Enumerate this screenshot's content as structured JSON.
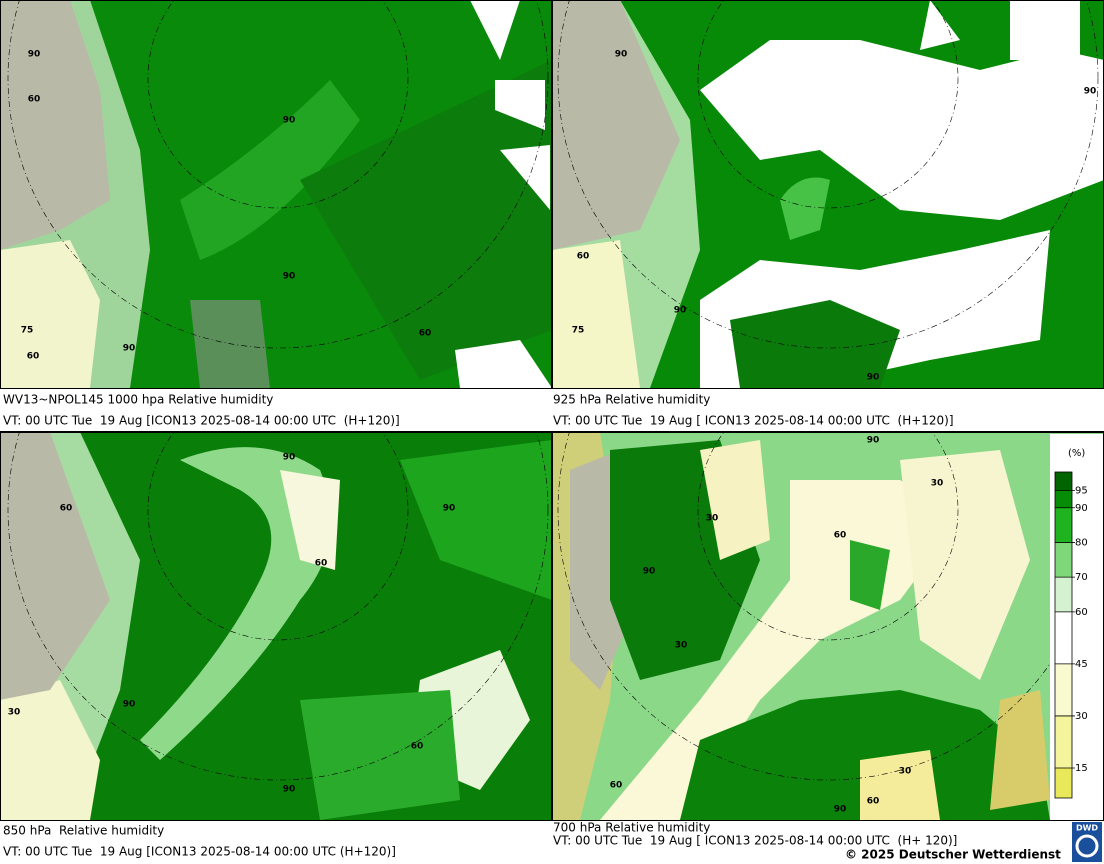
{
  "panels": [
    {
      "caption": "WV13~NPOL145 1000 hpa Relative humidity",
      "valid_time": "VT: 00 UTC Tue  19 Aug [ICON13 2025-08-14 00:00 UTC  (H+120)]",
      "contour_labels": [
        "90",
        "60",
        "90",
        "90",
        "90",
        "60",
        "60",
        "75"
      ]
    },
    {
      "caption": "925 hPa Relative humidity",
      "valid_time": "VT: 00 UTC Tue  19 Aug [ ICON13 2025-08-14 00:00 UTC  (H+120)]",
      "contour_labels": [
        "90",
        "60",
        "90",
        "90",
        "90",
        "75"
      ]
    },
    {
      "caption": "850 hPa  Relative humidity",
      "valid_time": "VT: 00 UTC Tue  19 Aug [ICON13 2025-08-14 00:00 UTC (H+120)]",
      "contour_labels": [
        "90",
        "60",
        "60",
        "90",
        "90",
        "60",
        "90",
        "30"
      ]
    },
    {
      "caption": "700 hPa Relative humidity",
      "valid_time": "VT: 00 UTC Tue  19 Aug [ ICON13 2025-08-14 00:00 UTC  (H+ 120)]",
      "contour_labels": [
        "90",
        "30",
        "30",
        "60",
        "90",
        "30",
        "60",
        "60",
        "90",
        "30"
      ]
    }
  ],
  "legend": {
    "unit": "(%)",
    "ticks": [
      15,
      30,
      45,
      60,
      70,
      80,
      90,
      95
    ],
    "colors": [
      "#e8e85a",
      "#f4f49c",
      "#fafad0",
      "#ffffff",
      "#d4f2d0",
      "#7ed87a",
      "#1fb31f",
      "#078c07",
      "#006400"
    ]
  },
  "copyright": "© 2025 Deutscher Wetterdienst",
  "logo": "DWD"
}
